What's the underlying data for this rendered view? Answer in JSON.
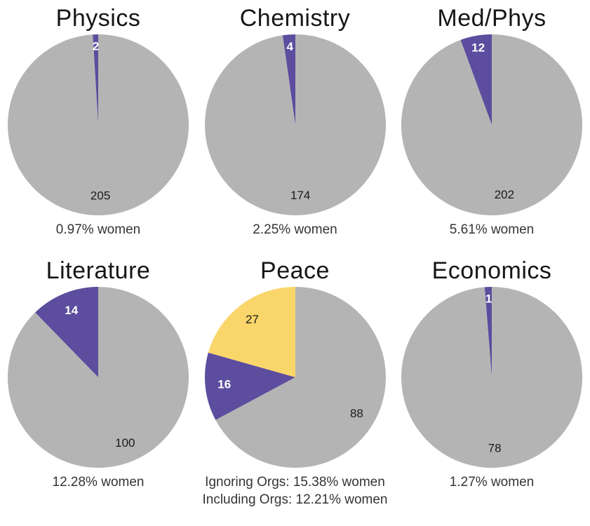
{
  "colors": {
    "women": "#5C4D9E",
    "men": "#B5B4B4",
    "orgs": "#FAD56A",
    "slice_label_light": "#ffffff",
    "slice_label_dark": "#1a1a1a"
  },
  "chart_data": [
    {
      "type": "pie",
      "title": "Physics",
      "slices": [
        {
          "group": "women",
          "label": "2",
          "value": 2
        },
        {
          "group": "men",
          "label": "205",
          "value": 205
        }
      ],
      "caption": [
        "0.97% women"
      ]
    },
    {
      "type": "pie",
      "title": "Chemistry",
      "slices": [
        {
          "group": "women",
          "label": "4",
          "value": 4
        },
        {
          "group": "men",
          "label": "174",
          "value": 174
        }
      ],
      "caption": [
        "2.25% women"
      ]
    },
    {
      "type": "pie",
      "title": "Med/Phys",
      "slices": [
        {
          "group": "women",
          "label": "12",
          "value": 12
        },
        {
          "group": "men",
          "label": "202",
          "value": 202
        }
      ],
      "caption": [
        "5.61% women"
      ]
    },
    {
      "type": "pie",
      "title": "Literature",
      "slices": [
        {
          "group": "women",
          "label": "14",
          "value": 14
        },
        {
          "group": "men",
          "label": "100",
          "value": 100
        }
      ],
      "caption": [
        "12.28% women"
      ]
    },
    {
      "type": "pie",
      "title": "Peace",
      "slices": [
        {
          "group": "orgs",
          "label": "27",
          "value": 27
        },
        {
          "group": "women",
          "label": "16",
          "value": 16
        },
        {
          "group": "men",
          "label": "88",
          "value": 88
        }
      ],
      "caption": [
        "Ignoring Orgs: 15.38% women",
        "Including Orgs: 12.21% women"
      ]
    },
    {
      "type": "pie",
      "title": "Economics",
      "slices": [
        {
          "group": "women",
          "label": "1",
          "value": 1
        },
        {
          "group": "men",
          "label": "78",
          "value": 78
        }
      ],
      "caption": [
        "1.27% women"
      ]
    }
  ]
}
